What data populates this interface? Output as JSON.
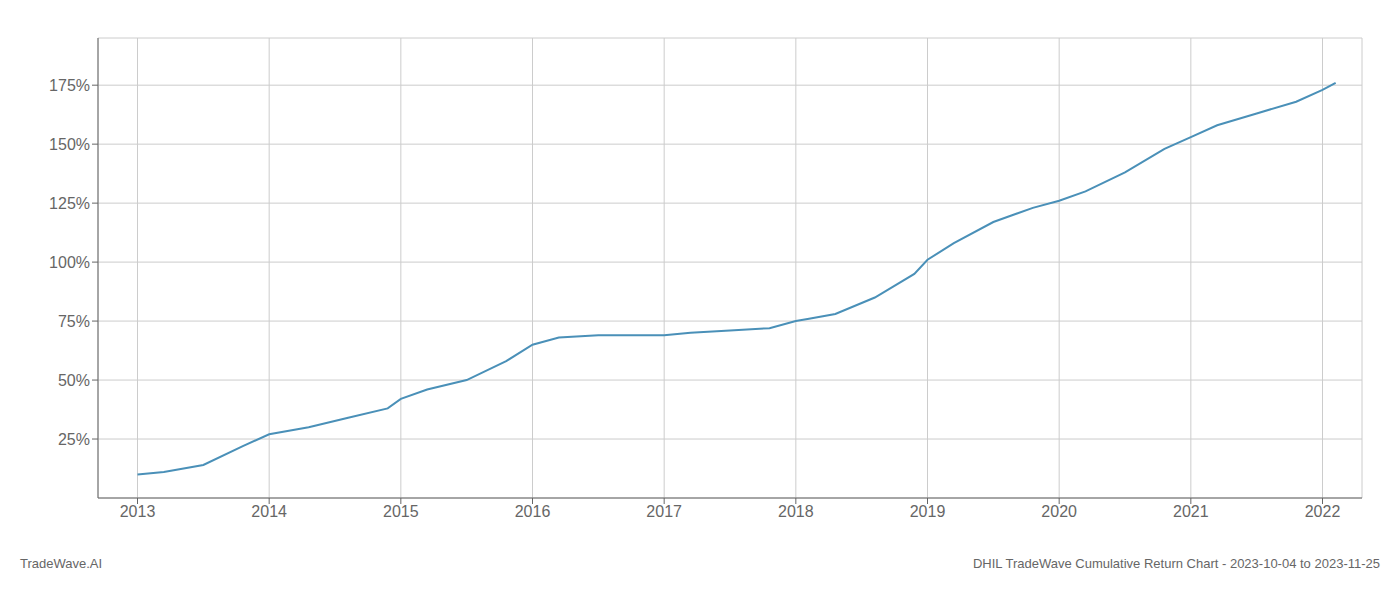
{
  "chart_data": {
    "type": "line",
    "x": [
      2013.0,
      2013.2,
      2013.5,
      2013.8,
      2014.0,
      2014.3,
      2014.6,
      2014.9,
      2015.0,
      2015.2,
      2015.5,
      2015.8,
      2016.0,
      2016.2,
      2016.5,
      2016.8,
      2017.0,
      2017.2,
      2017.5,
      2017.8,
      2018.0,
      2018.1,
      2018.3,
      2018.6,
      2018.9,
      2019.0,
      2019.2,
      2019.5,
      2019.8,
      2020.0,
      2020.2,
      2020.5,
      2020.8,
      2021.0,
      2021.2,
      2021.5,
      2021.8,
      2022.0,
      2022.1
    ],
    "values": [
      10,
      11,
      14,
      22,
      27,
      30,
      34,
      38,
      42,
      46,
      50,
      58,
      65,
      68,
      69,
      69,
      69,
      70,
      71,
      72,
      75,
      76,
      78,
      85,
      95,
      101,
      108,
      117,
      123,
      126,
      130,
      138,
      148,
      153,
      158,
      163,
      168,
      173,
      176
    ],
    "color": "#4a90b8",
    "xlim": [
      2012.7,
      2022.3
    ],
    "xticks": [
      2013,
      2014,
      2015,
      2016,
      2017,
      2018,
      2019,
      2020,
      2021,
      2022
    ],
    "ylim": [
      0,
      195
    ],
    "yticks": [
      {
        "value": 25,
        "label": "25%"
      },
      {
        "value": 50,
        "label": "50%"
      },
      {
        "value": 75,
        "label": "75%"
      },
      {
        "value": 100,
        "label": "100%"
      },
      {
        "value": 125,
        "label": "125%"
      },
      {
        "value": 150,
        "label": "150%"
      },
      {
        "value": 175,
        "label": "175%"
      }
    ],
    "grid": true,
    "annotations": [
      "TradeWave.AI",
      "DHIL TradeWave Cumulative Return Chart - 2023-10-04 to 2023-11-25"
    ]
  }
}
